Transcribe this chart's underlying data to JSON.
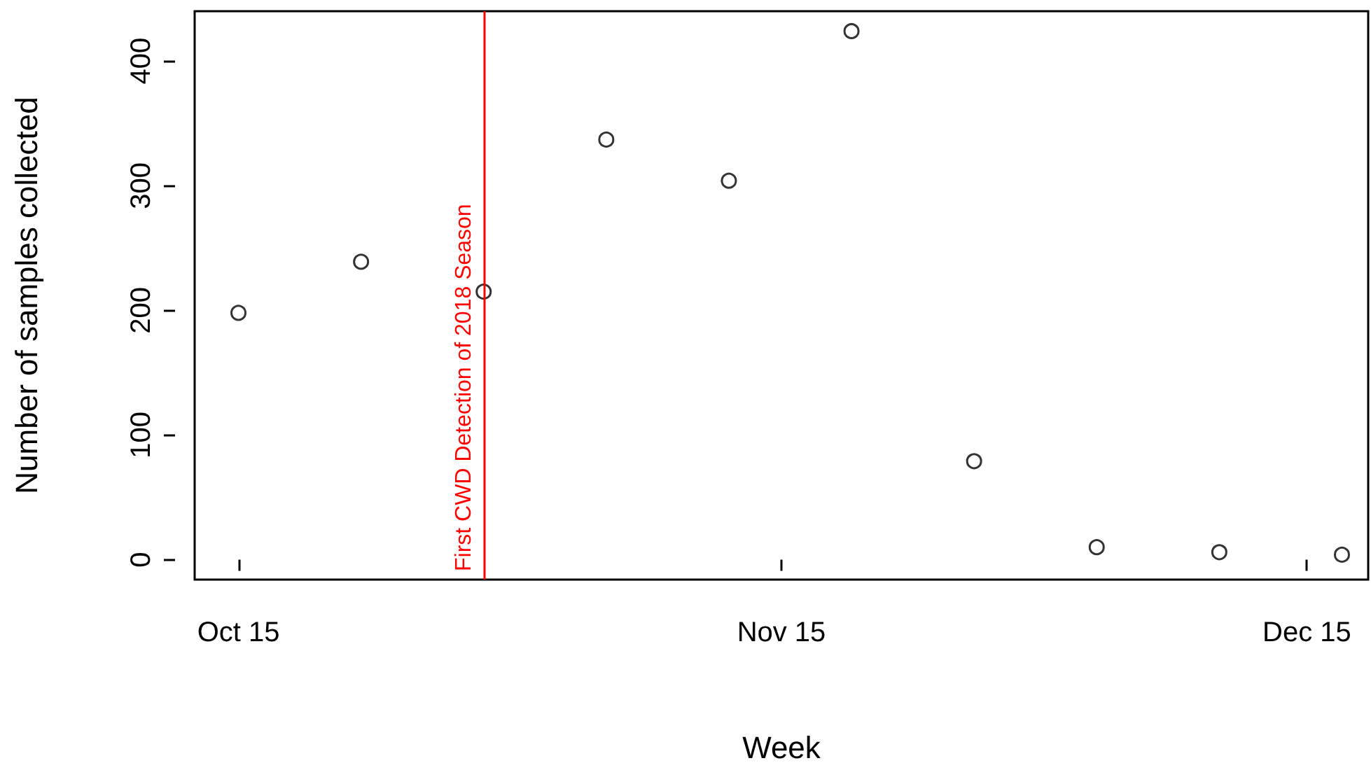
{
  "chart_data": {
    "type": "scatter",
    "xlabel": "Week",
    "ylabel": "Number of samples collected",
    "x": [
      "--10-15",
      "--10-22",
      "--10-29",
      "--11-05",
      "--11-12",
      "--11-19",
      "--11-26",
      "--12-03",
      "--12-10",
      "--12-17"
    ],
    "series": [
      {
        "color": "#000000",
        "values": [
          198,
          239,
          215,
          337,
          304,
          424,
          79,
          10,
          6,
          4
        ]
      }
    ],
    "xlim": [
      "--10-12T12:00",
      "--12-18T12:00"
    ],
    "xticks": [
      {
        "value": "--10-15",
        "label": "Oct 15"
      },
      {
        "value": "--11-15",
        "label": "Nov 15"
      },
      {
        "value": "--12-15",
        "label": "Dec 15"
      }
    ],
    "ylim": [
      -16,
      440
    ],
    "yticks": [
      0,
      100,
      200,
      300,
      400
    ],
    "ref_lines": [
      {
        "axis": "x",
        "value": "--10-29",
        "label": "First CWD Detection of 2018 Season",
        "color": "#ff0000"
      }
    ],
    "marker": "circle",
    "grid": false
  }
}
